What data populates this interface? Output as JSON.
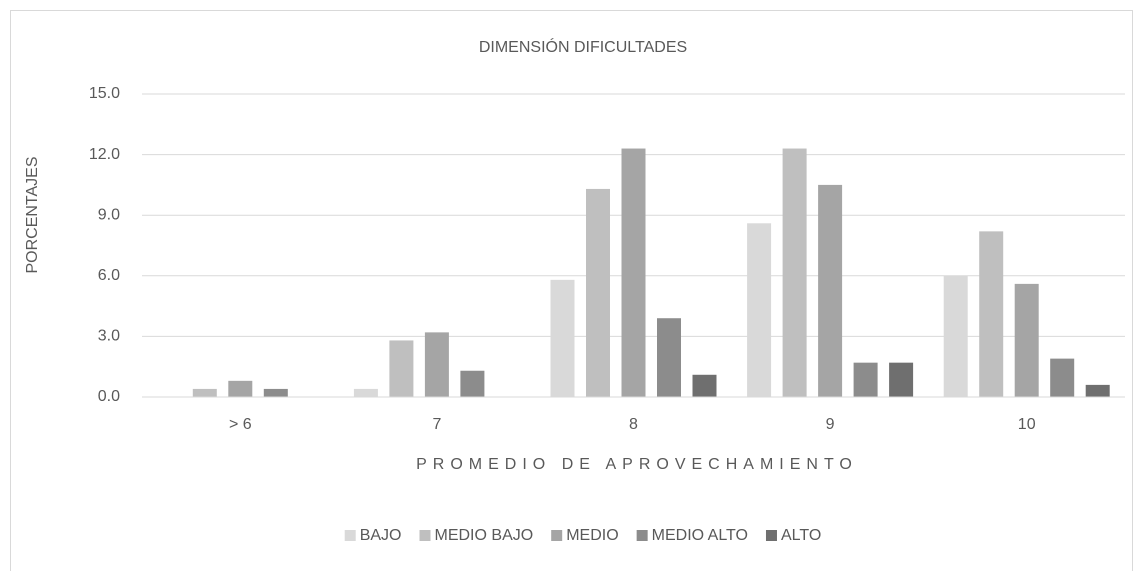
{
  "chart_data": {
    "type": "bar",
    "title": "DIMENSIÓN DIFICULTADES",
    "x_label": "PROMEDIO DE APROVECHAMIENTO",
    "y_label": "PORCENTAJES",
    "categories": [
      "> 6",
      "7",
      "8",
      "9",
      "10"
    ],
    "series": [
      {
        "name": "BAJO",
        "color": "#d9d9d9",
        "values": [
          0,
          0.4,
          5.8,
          8.6,
          6.0
        ]
      },
      {
        "name": "MEDIO BAJO",
        "color": "#bfbfbf",
        "values": [
          0.4,
          2.8,
          10.3,
          12.3,
          8.2
        ]
      },
      {
        "name": "MEDIO",
        "color": "#a5a5a5",
        "values": [
          0.8,
          3.2,
          12.3,
          10.5,
          5.6
        ]
      },
      {
        "name": "MEDIO ALTO",
        "color": "#8c8c8c",
        "values": [
          0.4,
          1.3,
          3.9,
          1.7,
          1.9
        ]
      },
      {
        "name": "ALTO",
        "color": "#6f6f6f",
        "values": [
          0,
          0,
          1.1,
          1.7,
          0.6
        ]
      }
    ],
    "ylim": [
      0,
      15
    ],
    "yticks": [
      {
        "value": 0,
        "label": "0.0"
      },
      {
        "value": 3,
        "label": "3.0"
      },
      {
        "value": 6,
        "label": "6.0"
      },
      {
        "value": 9,
        "label": "9.0"
      },
      {
        "value": 12,
        "label": "12.0"
      },
      {
        "value": 15,
        "label": "15.0"
      }
    ],
    "grid": true,
    "legend": "bottom"
  }
}
